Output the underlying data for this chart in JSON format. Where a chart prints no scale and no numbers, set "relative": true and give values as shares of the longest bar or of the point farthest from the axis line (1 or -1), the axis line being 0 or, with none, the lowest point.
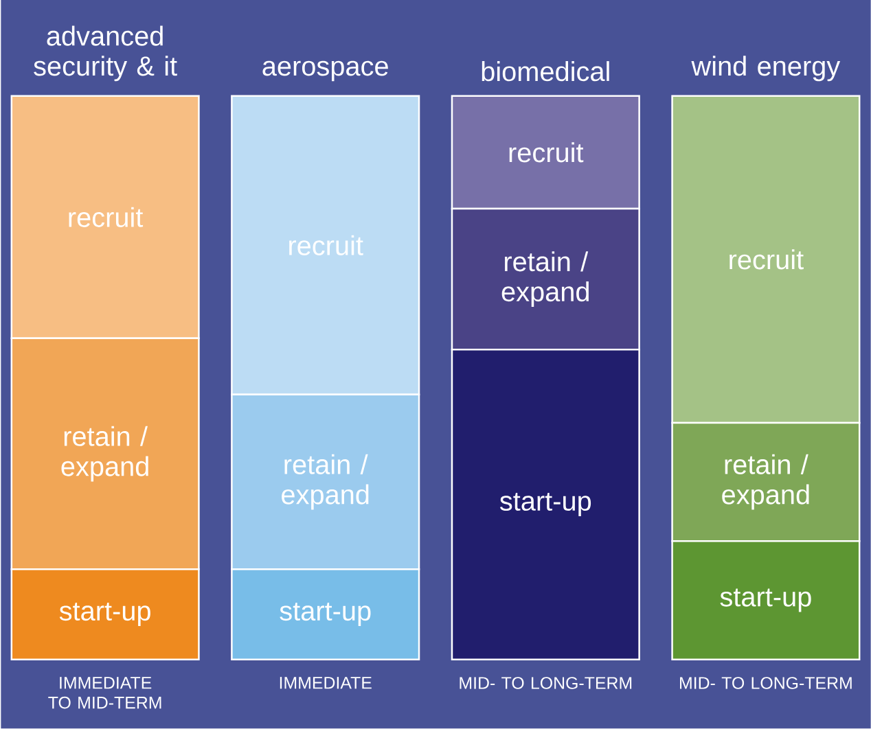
{
  "chart_data": {
    "type": "bar",
    "stacked": true,
    "relative": true,
    "categories": [
      "advanced security & it",
      "aerospace",
      "biomedical",
      "wind energy"
    ],
    "series": [
      {
        "name": "start-up",
        "values": [
          0.16,
          0.16,
          0.55,
          0.21
        ],
        "colors": [
          "#ee8a1f",
          "#78bde8",
          "#211e6d",
          "#5d9632"
        ]
      },
      {
        "name": "retain / expand",
        "values": [
          0.41,
          0.31,
          0.25,
          0.21
        ],
        "colors": [
          "#f1a656",
          "#9bcbee",
          "#4a4386",
          "#7fa757"
        ]
      },
      {
        "name": "recruit",
        "values": [
          0.43,
          0.53,
          0.2,
          0.58
        ],
        "colors": [
          "#f7be83",
          "#bcdcf4",
          "#7770a8",
          "#a4c286"
        ]
      }
    ],
    "annotations": [
      "IMMEDIATE TO MID-TERM",
      "IMMEDIATE",
      "MID- TO LONG-TERM",
      "MID- TO LONG-TERM"
    ]
  }
}
